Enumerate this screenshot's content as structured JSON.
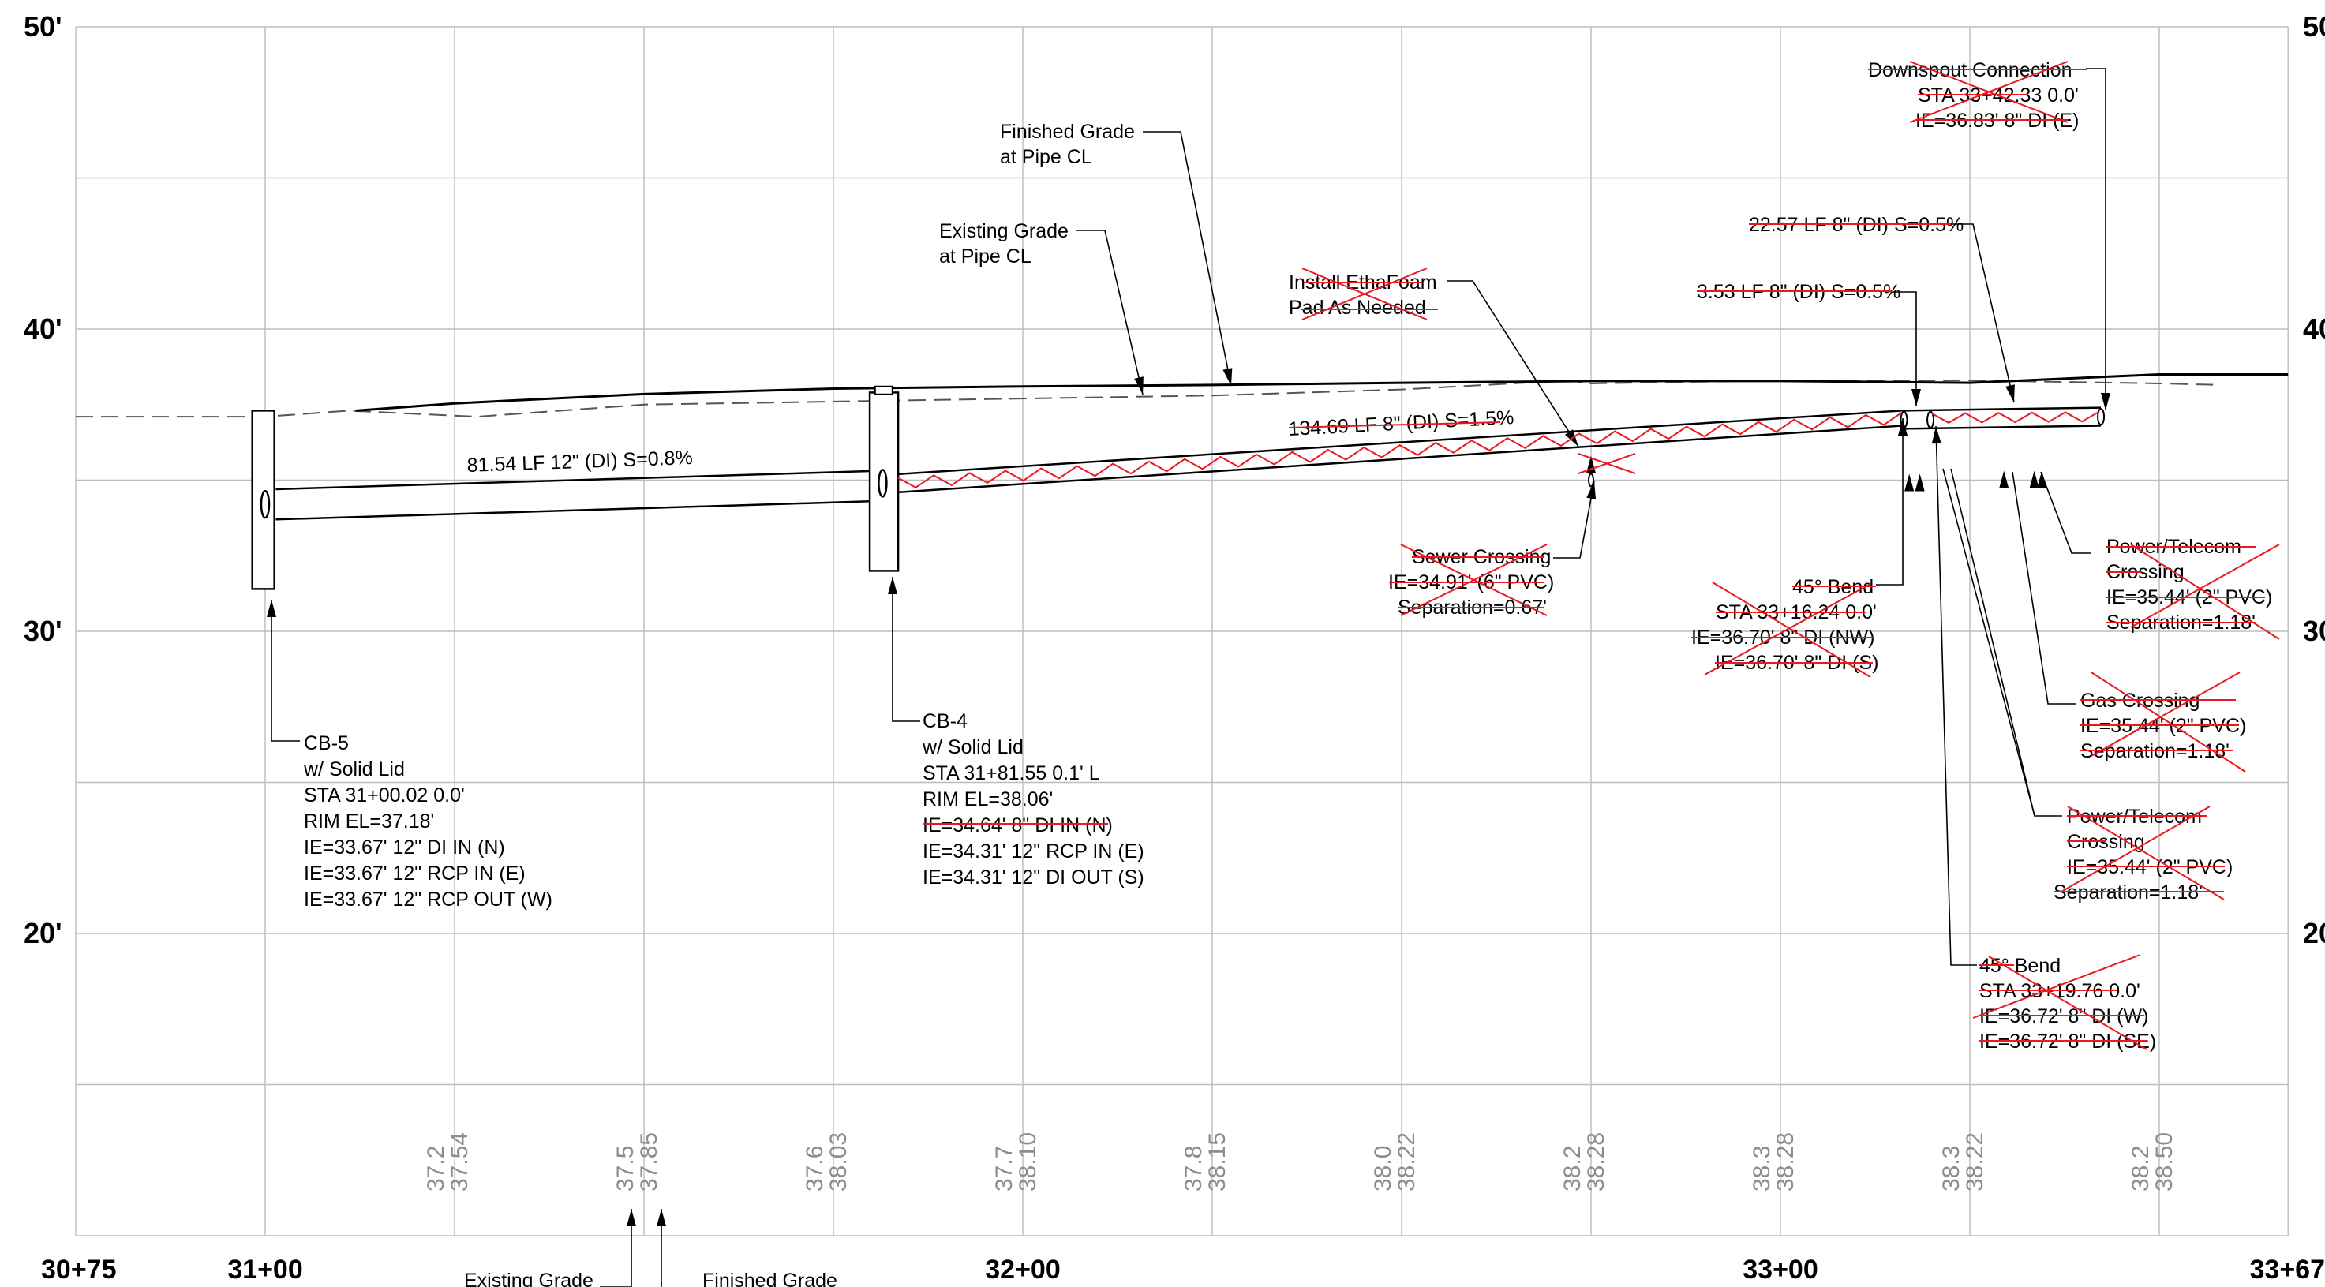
{
  "elev_labels": [
    {
      "text": "50'",
      "elev": 50
    },
    {
      "text": "40'",
      "elev": 40
    },
    {
      "text": "30'",
      "elev": 30
    },
    {
      "text": "20'",
      "elev": 20
    }
  ],
  "elev_labels_right": [
    {
      "text": "50",
      "elev": 50
    },
    {
      "text": "40",
      "elev": 40
    },
    {
      "text": "30",
      "elev": 30
    },
    {
      "text": "20",
      "elev": 20
    }
  ],
  "station_labels": [
    {
      "text": "30+75",
      "sta": 3075
    },
    {
      "text": "31+00",
      "sta": 3100
    },
    {
      "text": "32+00",
      "sta": 3200
    },
    {
      "text": "33+00",
      "sta": 3300
    },
    {
      "text": "33+67",
      "sta": 3367
    }
  ],
  "grade_values": [
    {
      "sta": 3125,
      "existing": "37.2",
      "finished": "37.54"
    },
    {
      "sta": 3150,
      "existing": "37.5",
      "finished": "37.85"
    },
    {
      "sta": 3175,
      "existing": "37.6",
      "finished": "38.03"
    },
    {
      "sta": 3200,
      "existing": "37.7",
      "finished": "38.10"
    },
    {
      "sta": 3225,
      "existing": "37.8",
      "finished": "38.15"
    },
    {
      "sta": 3250,
      "existing": "38.0",
      "finished": "38.22"
    },
    {
      "sta": 3275,
      "existing": "38.2",
      "finished": "38.28"
    },
    {
      "sta": 3300,
      "existing": "38.3",
      "finished": "38.28"
    },
    {
      "sta": 3325,
      "existing": "38.3",
      "finished": "38.22"
    },
    {
      "sta": 3350,
      "existing": "38.2",
      "finished": "38.50"
    }
  ],
  "bottom_labels": {
    "existing": "Existing Grade",
    "finished": "Finished Grade"
  },
  "pipe_labels": {
    "pipe_12in": "81.54 LF 12\" (DI) S=0.8%",
    "pipe_8in_main": "134.69 LF 8\" (DI) S=1.5%",
    "pipe_8in_short": "3.53 LF 8\" (DI) S=0.5%",
    "pipe_8in_end": "22.57 LF 8\" (DI) S=0.5%"
  },
  "callouts": {
    "finished_grade": [
      "Finished Grade",
      "at Pipe CL"
    ],
    "existing_grade": [
      "Existing Grade",
      "at Pipe CL"
    ],
    "ethafoam": [
      "Install EthaFoam",
      "Pad As Needed"
    ],
    "downspout": [
      "Downspout Connection",
      "STA 33+42.33 0.0'",
      "IE=36.83' 8\" DI (E)"
    ],
    "sewer": [
      "Sewer Crossing",
      "IE=34.91' (6\" PVC)",
      "Separation=0.67'"
    ],
    "bend1": [
      "45° Bend",
      "STA 33+16.24 0.0'",
      "IE=36.70' 8\" DI (NW)",
      "IE=36.70' 8\" DI (S)"
    ],
    "bend2": [
      "45° Bend",
      "STA 33+19.76 0.0'",
      "IE=36.72' 8\" DI (W)",
      "IE=36.72' 8\" DI (SE)"
    ],
    "power1": [
      "Power/Telecom",
      "Crossing",
      "IE=35.44' (2\" PVC)",
      "Separation=1.18'"
    ],
    "gas": [
      "Gas Crossing",
      "IE=35.44' (2\" PVC)",
      "Separation=1.18'"
    ],
    "power2": [
      "Power/Telecom",
      "Crossing",
      "IE=35.44' (2\" PVC)",
      "Separation=1.18'"
    ],
    "cb5": [
      "CB-5",
      "w/ Solid Lid",
      "STA 31+00.02 0.0'",
      "RIM EL=37.18'",
      "IE=33.67' 12\" DI IN (N)",
      "IE=33.67' 12\" RCP IN (E)",
      "IE=33.67' 12\" RCP OUT (W)"
    ],
    "cb4": [
      "CB-4",
      "w/ Solid Lid",
      "STA 31+81.55 0.1' L",
      "RIM EL=38.06'",
      "IE=34.64' 8\" DI IN (N)",
      "IE=34.31' 12\" RCP IN (E)",
      "IE=34.31' 12\" DI OUT (S)"
    ]
  },
  "colors": {
    "line": "#000000",
    "grid": "#bdbdbd",
    "revision": "#e8191f",
    "value_text": "#8c8c8c"
  }
}
